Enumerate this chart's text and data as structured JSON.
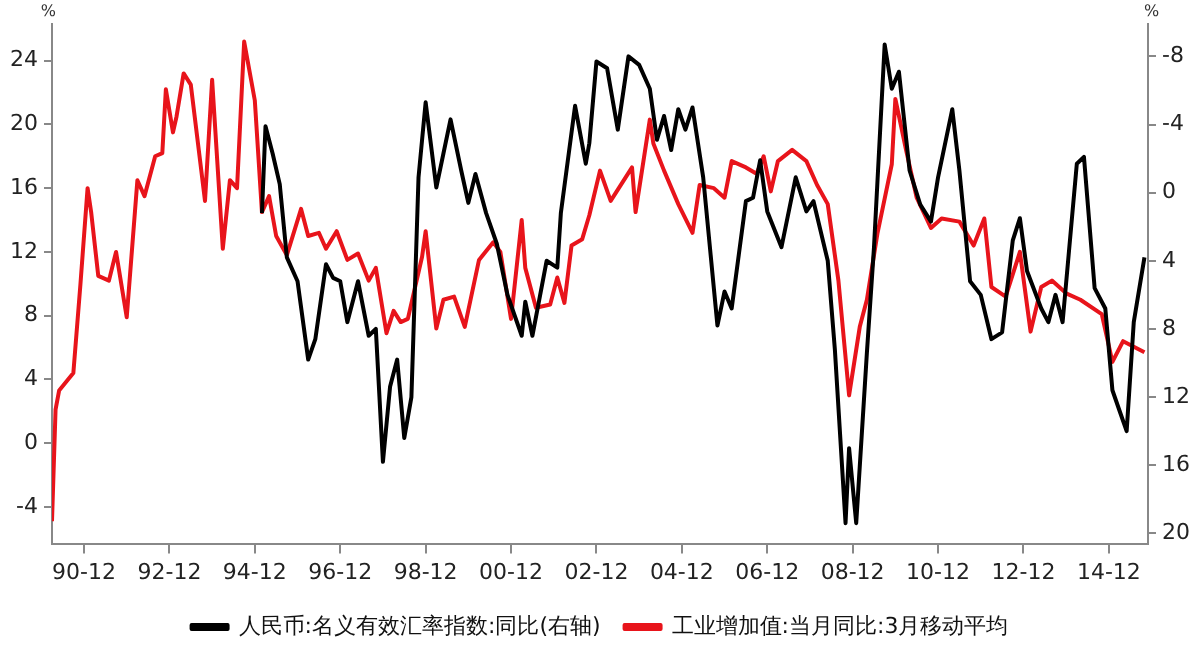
{
  "chart_data": {
    "type": "line",
    "ylabel": "%",
    "y2label": "%",
    "legend": "bottom",
    "grid": false,
    "marker": "none",
    "line_style": "solid",
    "xlim": [
      "1990-03",
      "2015-11"
    ],
    "ylim": [
      -6.3,
      26.3
    ],
    "y2lim": [
      20.6,
      -9.9
    ],
    "xticks": [
      {
        "value": "1990-12",
        "label": "90-12"
      },
      {
        "value": "1992-12",
        "label": "92-12"
      },
      {
        "value": "1994-12",
        "label": "94-12"
      },
      {
        "value": "1996-12",
        "label": "96-12"
      },
      {
        "value": "1998-12",
        "label": "98-12"
      },
      {
        "value": "2000-12",
        "label": "00-12"
      },
      {
        "value": "2002-12",
        "label": "02-12"
      },
      {
        "value": "2004-12",
        "label": "04-12"
      },
      {
        "value": "2006-12",
        "label": "06-12"
      },
      {
        "value": "2008-12",
        "label": "08-12"
      },
      {
        "value": "2010-12",
        "label": "10-12"
      },
      {
        "value": "2012-12",
        "label": "12-12"
      },
      {
        "value": "2014-12",
        "label": "14-12"
      }
    ],
    "yticks": [
      -4,
      0,
      4,
      8,
      12,
      16,
      20,
      24
    ],
    "y2ticks": [
      -8,
      -4,
      0,
      4,
      8,
      12,
      16,
      20
    ],
    "series": [
      {
        "name": "人民币:名义有效汇率指数:同比(右轴)",
        "color": "#000000",
        "axis": "y2",
        "x": [
          "1995-02",
          "1995-03",
          "1995-05",
          "1995-07",
          "1995-09",
          "1995-12",
          "1996-03",
          "1996-05",
          "1996-08",
          "1996-10",
          "1996-12",
          "1997-02",
          "1997-05",
          "1997-08",
          "1997-10",
          "1997-12",
          "1998-02",
          "1998-04",
          "1998-06",
          "1998-08",
          "1998-10",
          "1998-12",
          "1999-03",
          "1999-05",
          "1999-07",
          "1999-10",
          "1999-12",
          "2000-02",
          "2000-05",
          "2000-08",
          "2000-11",
          "2001-03",
          "2001-04",
          "2001-06",
          "2001-10",
          "2002-01",
          "2002-02",
          "2002-06",
          "2002-09",
          "2002-10",
          "2002-12",
          "2003-03",
          "2003-06",
          "2003-09",
          "2003-12",
          "2004-03",
          "2004-05",
          "2004-07",
          "2004-09",
          "2004-11",
          "2005-01",
          "2005-03",
          "2005-06",
          "2005-10",
          "2005-12",
          "2006-02",
          "2006-06",
          "2006-08",
          "2006-10",
          "2006-12",
          "2007-04",
          "2007-08",
          "2007-11",
          "2008-01",
          "2008-05",
          "2008-07",
          "2008-10",
          "2008-11",
          "2009-01",
          "2009-04",
          "2009-06",
          "2009-09",
          "2009-11",
          "2010-01",
          "2010-04",
          "2010-07",
          "2010-10",
          "2010-12",
          "2011-04",
          "2011-06",
          "2011-09",
          "2011-12",
          "2012-03",
          "2012-06",
          "2012-09",
          "2012-11",
          "2013-01",
          "2013-05",
          "2013-07",
          "2013-09",
          "2013-11",
          "2014-03",
          "2014-05",
          "2014-08",
          "2014-11",
          "2015-01",
          "2015-03",
          "2015-05",
          "2015-07",
          "2015-10"
        ],
        "values": [
          1.2,
          -3.9,
          -2.3,
          -0.5,
          3.8,
          5.2,
          9.8,
          8.6,
          4.2,
          5.0,
          5.2,
          7.6,
          5.2,
          8.4,
          8.0,
          15.8,
          11.4,
          9.8,
          14.4,
          12,
          -0.9,
          -5.3,
          -0.3,
          -2.3,
          -4.3,
          -1.3,
          0.6,
          -1.1,
          1.2,
          3.0,
          6.0,
          8.4,
          6.4,
          8.4,
          4.0,
          4.4,
          1.2,
          -5.1,
          -1.7,
          -2.9,
          -7.7,
          -7.3,
          -3.7,
          -8,
          -7.5,
          -6.1,
          -3.1,
          -4.5,
          -2.5,
          -4.9,
          -3.7,
          -5,
          -0.9,
          7.8,
          5.8,
          6.8,
          0.5,
          0.3,
          -1.9,
          1.1,
          3.2,
          -0.9,
          1.1,
          0.5,
          4.0,
          9.2,
          19.4,
          15,
          19.4,
          9.4,
          3.2,
          -8.7,
          -6.1,
          -7.1,
          -1.3,
          0.7,
          1.7,
          -0.9,
          -4.9,
          -1.3,
          5.2,
          6,
          8.6,
          8.2,
          2.8,
          1.5,
          4.6,
          6.8,
          7.6,
          6,
          7.6,
          -1.7,
          -2.1,
          5.6,
          6.8,
          11.6,
          12.8,
          14,
          7.6,
          3.8
        ]
      },
      {
        "name": "工业增加值:当月同比:3月移动平均",
        "color": "#e8141b",
        "x": [
          "1990-03",
          "1990-04",
          "1990-05",
          "1990-09",
          "1990-11",
          "1991-01",
          "1991-02",
          "1991-04",
          "1991-07",
          "1991-09",
          "1991-12",
          "1992-03",
          "1992-05",
          "1992-08",
          "1992-10",
          "1992-11",
          "1993-01",
          "1993-02",
          "1993-04",
          "1993-06",
          "1993-10",
          "1993-12",
          "1994-03",
          "1994-05",
          "1994-07",
          "1994-09",
          "1994-12",
          "1995-02",
          "1995-04",
          "1995-06",
          "1995-09",
          "1996-01",
          "1996-03",
          "1996-06",
          "1996-08",
          "1996-11",
          "1997-02",
          "1997-05",
          "1997-08",
          "1997-10",
          "1998-01",
          "1998-03",
          "1998-05",
          "1998-07",
          "1998-11",
          "1998-12",
          "1999-03",
          "1999-05",
          "1999-08",
          "1999-11",
          "2000-03",
          "2000-07",
          "2000-09",
          "2000-12",
          "2001-03",
          "2001-04",
          "2001-07",
          "2001-11",
          "2002-01",
          "2002-03",
          "2002-05",
          "2002-08",
          "2002-10",
          "2003-01",
          "2003-04",
          "2003-10",
          "2003-11",
          "2004-03",
          "2004-04",
          "2004-07",
          "2004-11",
          "2005-03",
          "2005-05",
          "2005-09",
          "2005-12",
          "2006-02",
          "2006-06",
          "2006-09",
          "2006-11",
          "2007-01",
          "2007-03",
          "2007-07",
          "2007-11",
          "2008-02",
          "2008-05",
          "2008-08",
          "2008-11",
          "2009-02",
          "2009-04",
          "2009-07",
          "2009-11",
          "2009-12",
          "2010-03",
          "2010-06",
          "2010-10",
          "2011-01",
          "2011-06",
          "2011-10",
          "2012-01",
          "2012-03",
          "2012-07",
          "2012-11",
          "2013-02",
          "2013-05",
          "2013-08",
          "2013-12",
          "2014-04",
          "2014-10",
          "2015-01",
          "2015-04",
          "2015-10"
        ],
        "values": [
          -4.9,
          2.1,
          3.3,
          4.4,
          10,
          16,
          14.5,
          10.5,
          10.2,
          12,
          7.9,
          16.5,
          15.5,
          18,
          18.2,
          22.2,
          19.5,
          20.5,
          23.2,
          22.5,
          15.2,
          22.8,
          12.2,
          16.5,
          16,
          25.2,
          21.5,
          14.5,
          15.5,
          13,
          11.8,
          14.7,
          13,
          13.2,
          12.2,
          13.3,
          11.5,
          11.9,
          10.2,
          11,
          6.9,
          8.3,
          7.6,
          7.8,
          11.7,
          13.3,
          7.2,
          9,
          9.2,
          7.3,
          11.5,
          12.6,
          12,
          7.8,
          14,
          11,
          8.5,
          8.7,
          10.4,
          8.8,
          12.4,
          12.8,
          14.3,
          17.1,
          15.2,
          17.3,
          14.5,
          20.3,
          18.8,
          17.1,
          15,
          13.2,
          16.2,
          16,
          15.4,
          17.7,
          17.3,
          16.9,
          18,
          15.8,
          17.7,
          18.4,
          17.7,
          16.2,
          15,
          10.2,
          3,
          7.3,
          9,
          13.2,
          17.5,
          21.6,
          18.4,
          15.4,
          13.5,
          14.1,
          13.9,
          12.4,
          14.1,
          9.8,
          9.2,
          12,
          7,
          9.8,
          10.2,
          9.4,
          9,
          8.1,
          5.1,
          6.4,
          5.7
        ]
      }
    ]
  }
}
